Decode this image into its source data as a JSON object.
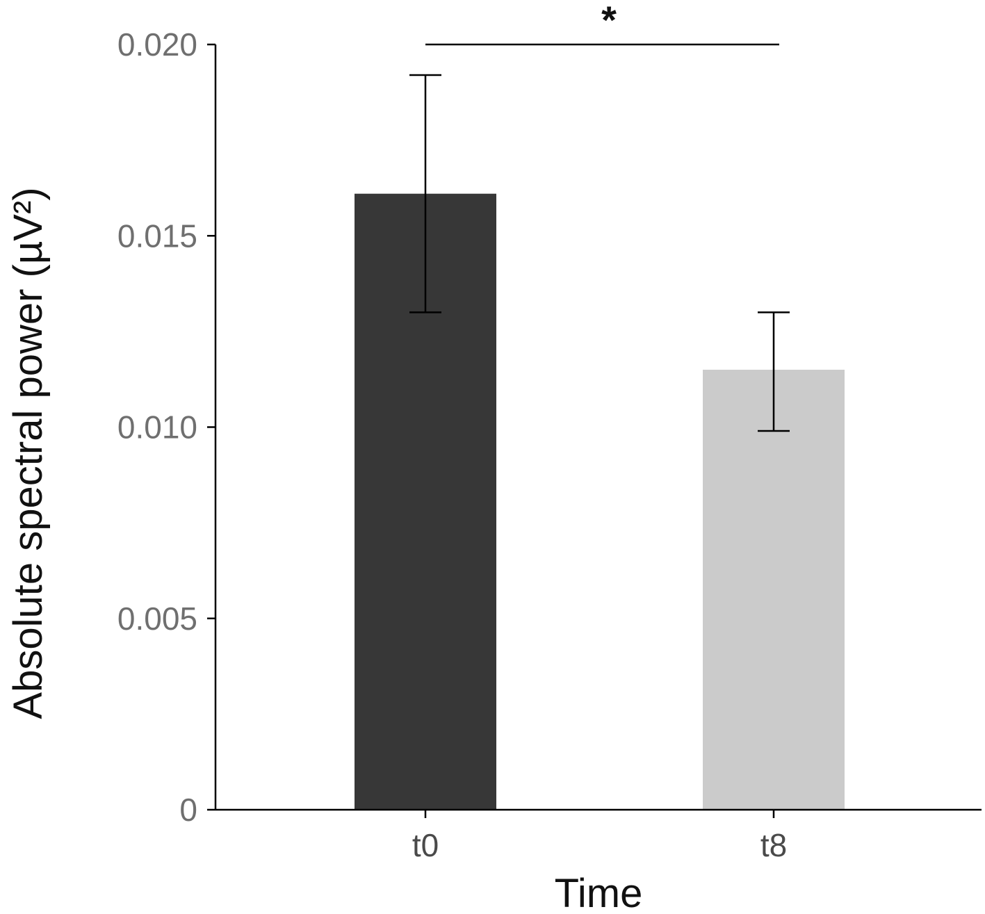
{
  "chart_data": {
    "type": "bar",
    "categories": [
      "t0",
      "t8"
    ],
    "values": [
      0.0161,
      0.0115
    ],
    "error_low": [
      0.013,
      0.0099
    ],
    "error_high": [
      0.0192,
      0.013
    ],
    "bar_colors": [
      "#373737",
      "#cbcbcb"
    ],
    "title": "",
    "xlabel": "Time",
    "ylabel": "Absolute spectral power (µV²)",
    "ylim": [
      0,
      0.02
    ],
    "y_ticks": [
      0,
      0.005,
      0.01,
      0.015,
      0.02
    ],
    "y_tick_labels": [
      "0",
      "0.005",
      "0.010",
      "0.015",
      "0.020"
    ],
    "grid": false,
    "significance": {
      "from": "t0",
      "to": "t8",
      "label": "*",
      "y": 0.02
    }
  }
}
